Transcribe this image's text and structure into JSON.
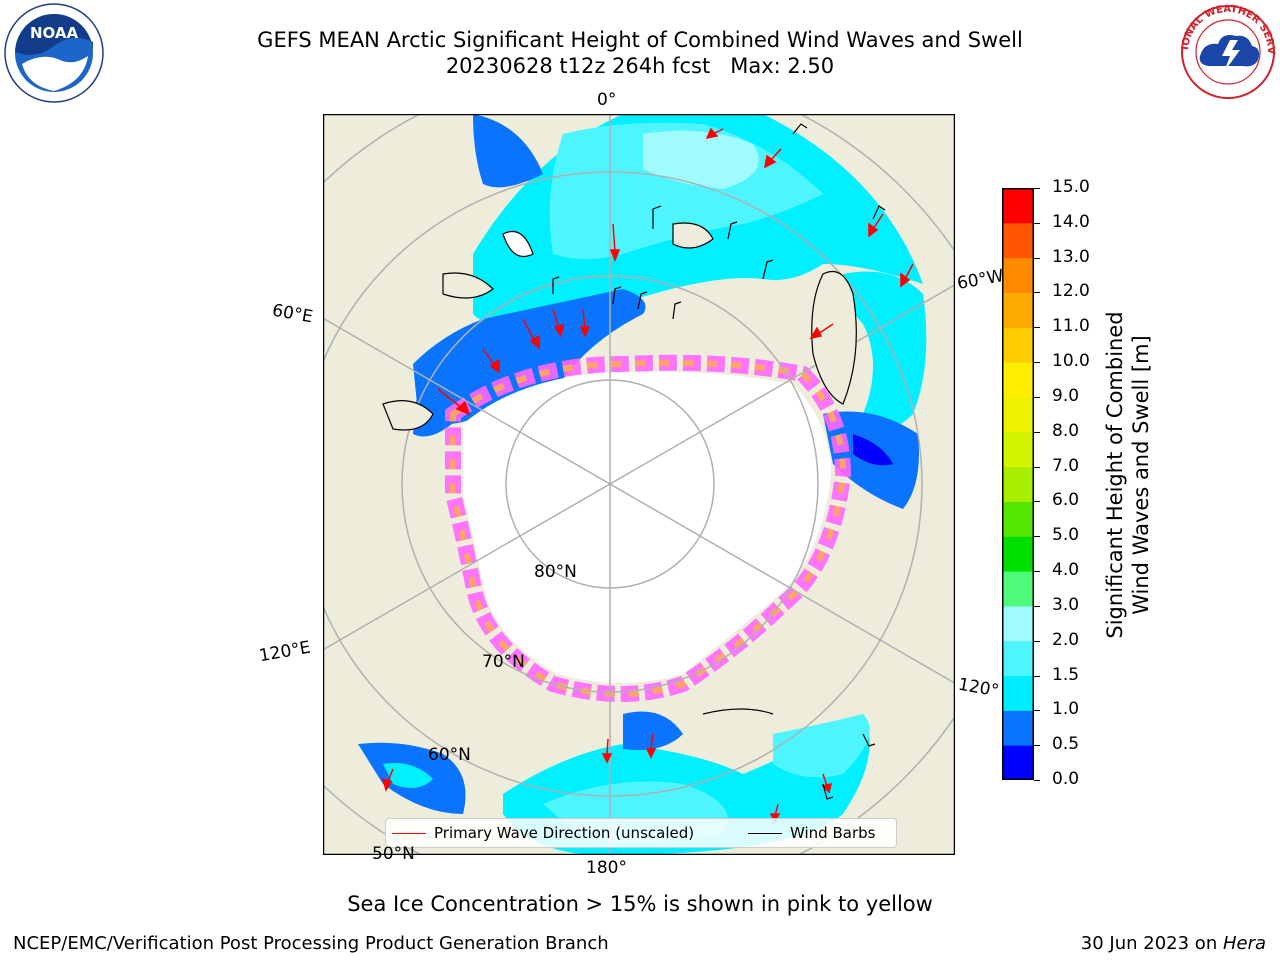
{
  "title": {
    "line1": "GEFS MEAN Arctic Significant Height of Combined Wind Waves and Swell",
    "line2": "20230628 t12z 264h fcst   Max: 2.50"
  },
  "logos": {
    "left": {
      "icon": "noaa-logo",
      "text": "NOAA",
      "ring_text": "NATIONAL OCEANIC AND ATMOSPHERIC ADMINISTRATION · U.S. DEPARTMENT OF COMMERCE"
    },
    "right": {
      "icon": "nws-logo",
      "ring_text": "NATIONAL WEATHER SERVICE"
    }
  },
  "map": {
    "projection": "north-polar-stereographic",
    "longitude_labels": {
      "top": "0°",
      "right_upper": "60°W",
      "right_lower": "120°",
      "bottom": "180°",
      "left_upper": "60°E",
      "left_lower": "120°E"
    },
    "latitude_labels": {
      "lat80": "80°N",
      "lat70": "70°N",
      "lat60": "60°N",
      "lat50": "50°N"
    },
    "colors": {
      "land": "#eeeddc",
      "ice_free_pole": "#ffffff",
      "grid": "#b0b0b0"
    }
  },
  "legend": {
    "wave_direction": {
      "label": "Primary Wave Direction (unscaled)",
      "color": "#ff0000"
    },
    "wind_barbs": {
      "label": "Wind Barbs",
      "color": "#000000"
    }
  },
  "colorbar": {
    "label_line1": "Significant Height of Combined",
    "label_line2": "Wind Waves and Swell [m]",
    "ticks": [
      "0.0",
      "0.5",
      "1.0",
      "1.5",
      "2.0",
      "3.0",
      "4.0",
      "5.0",
      "6.0",
      "7.0",
      "8.0",
      "9.0",
      "10.0",
      "11.0",
      "12.0",
      "13.0",
      "14.0",
      "15.0"
    ],
    "colors": [
      "#0000ff",
      "#0a74ff",
      "#00eeff",
      "#4ef5ff",
      "#a0fbff",
      "#4dfa7a",
      "#00e000",
      "#55e600",
      "#a8ee00",
      "#d4f500",
      "#eef200",
      "#ffee00",
      "#ffcc00",
      "#ffaa00",
      "#ff8a00",
      "#ff5500",
      "#ff0000"
    ]
  },
  "chart_data": {
    "type": "heatmap",
    "variable": "Significant Height of Combined Wind Waves and Swell",
    "units": "m",
    "model": "GEFS MEAN",
    "cycle": "20230628 t12z",
    "forecast_hour": "264h",
    "max_value": 2.5,
    "color_scale": {
      "min": 0.0,
      "max": 15.0,
      "bins": [
        0.0,
        0.5,
        1.0,
        1.5,
        2.0,
        3.0,
        4.0,
        5.0,
        6.0,
        7.0,
        8.0,
        9.0,
        10.0,
        11.0,
        12.0,
        13.0,
        14.0,
        15.0
      ]
    },
    "overlays": [
      "Primary Wave Direction (unscaled)",
      "Wind Barbs",
      "Sea ice concentration > 15%"
    ]
  },
  "notes": {
    "sea_ice": "Sea Ice Concentration > 15% is shown in pink to yellow"
  },
  "footer": {
    "left": "NCEP/EMC/Verification Post Processing Product Generation Branch",
    "right_date": "30 Jun 2023 on ",
    "right_host": "Hera"
  }
}
